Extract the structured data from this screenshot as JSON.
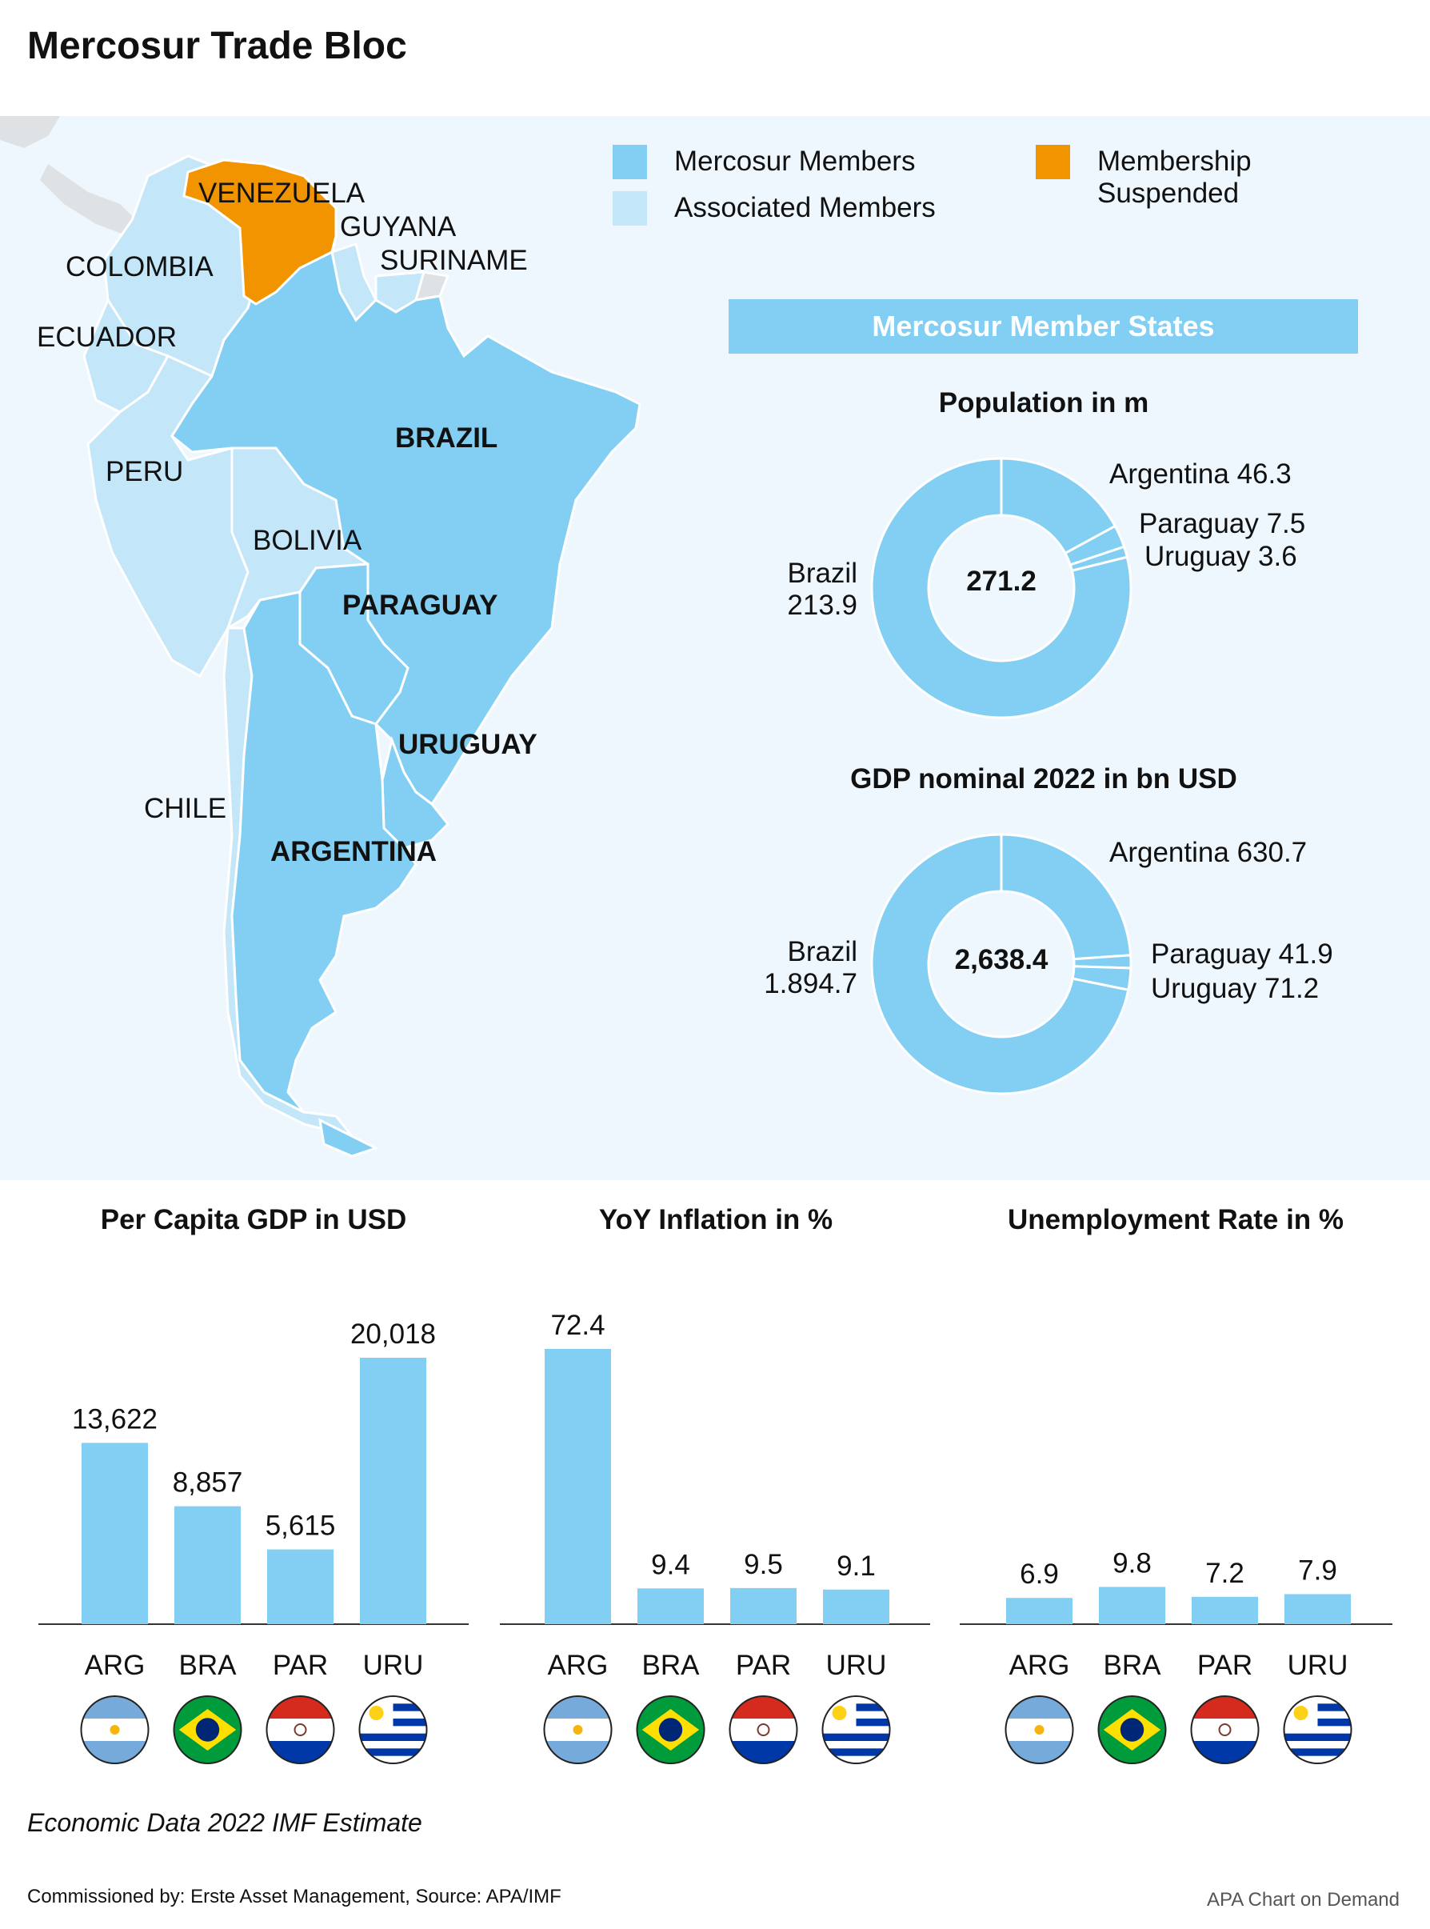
{
  "title": "Mercosur Trade Bloc",
  "colors": {
    "member": "#82cff3",
    "associated": "#c4e6f9",
    "suspended": "#f29400",
    "background_panel": "#eef7fd"
  },
  "legend": {
    "members": "Mercosur Members",
    "associated": "Associated Members",
    "suspended_line1": "Membership",
    "suspended_line2": "Suspended"
  },
  "map": {
    "members": [
      "BRAZIL",
      "PARAGUAY",
      "URUGUAY",
      "ARGENTINA"
    ],
    "associated": [
      "COLOMBIA",
      "ECUADOR",
      "PERU",
      "BOLIVIA",
      "CHILE",
      "GUYANA",
      "SURINAME"
    ],
    "suspended": [
      "VENEZUELA"
    ]
  },
  "banner": "Mercosur Member States",
  "chart_data": [
    {
      "type": "pie",
      "title": "Population in m",
      "center_label": "271.2",
      "slices": [
        {
          "name": "Argentina",
          "value": 46.3,
          "value_label": "46.3"
        },
        {
          "name": "Paraguay",
          "value": 7.5,
          "value_label": "7.5"
        },
        {
          "name": "Uruguay",
          "value": 3.6,
          "value_label": "3.6"
        },
        {
          "name": "Brazil",
          "value": 213.9,
          "value_label": "213.9"
        }
      ]
    },
    {
      "type": "pie",
      "title": "GDP nominal 2022 in bn USD",
      "center_label": "2,638.4",
      "slices": [
        {
          "name": "Argentina",
          "value": 630.7,
          "value_label": "630.7"
        },
        {
          "name": "Paraguay",
          "value": 41.9,
          "value_label": "41.9"
        },
        {
          "name": "Uruguay",
          "value": 71.2,
          "value_label": "71.2"
        },
        {
          "name": "Brazil",
          "value": 1894.7,
          "value_label": "1.894.7"
        }
      ]
    },
    {
      "type": "bar",
      "title": "Per Capita GDP in USD",
      "categories": [
        "ARG",
        "BRA",
        "PAR",
        "URU"
      ],
      "values": [
        13622,
        8857,
        5615,
        20018
      ],
      "value_labels": [
        "13,622",
        "8,857",
        "5,615",
        "20,018"
      ],
      "ylim": [
        0,
        21000
      ]
    },
    {
      "type": "bar",
      "title": "YoY Inflation in %",
      "categories": [
        "ARG",
        "BRA",
        "PAR",
        "URU"
      ],
      "values": [
        72.4,
        9.4,
        9.5,
        9.1
      ],
      "value_labels": [
        "72.4",
        "9.4",
        "9.5",
        "9.1"
      ],
      "ylim": [
        0,
        76
      ]
    },
    {
      "type": "bar",
      "title": "Unemployment Rate in %",
      "categories": [
        "ARG",
        "BRA",
        "PAR",
        "URU"
      ],
      "values": [
        6.9,
        9.8,
        7.2,
        7.9
      ],
      "value_labels": [
        "6.9",
        "9.8",
        "7.2",
        "7.9"
      ],
      "ylim": [
        0,
        76
      ]
    }
  ],
  "flags": [
    "argentina-flag-icon",
    "brazil-flag-icon",
    "paraguay-flag-icon",
    "uruguay-flag-icon"
  ],
  "footnote": "Economic Data 2022 IMF Estimate",
  "credit": "Commissioned by: Erste Asset Management, Source: APA/IMF",
  "apa": "APA Chart on Demand"
}
